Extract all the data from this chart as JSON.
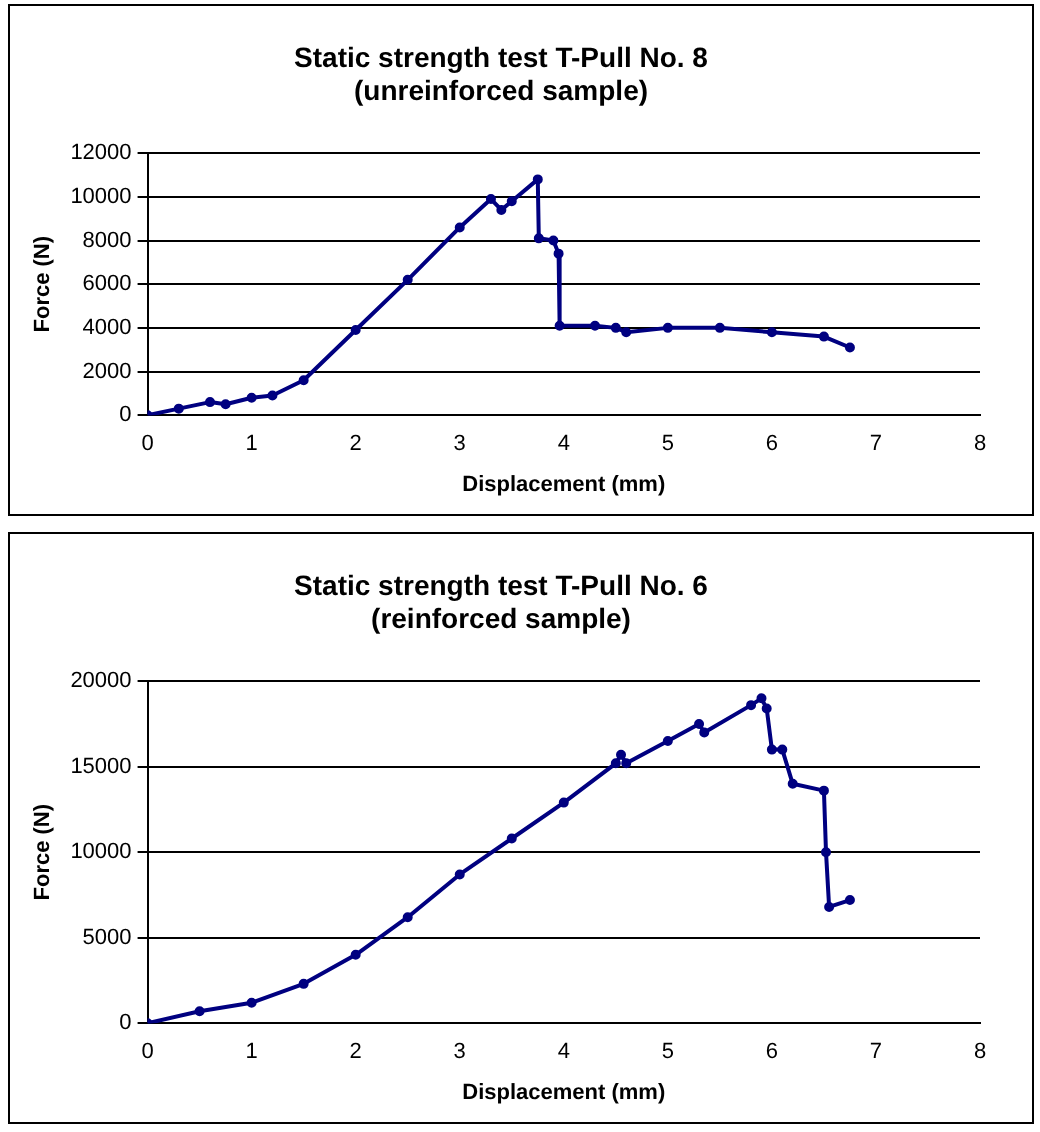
{
  "chart_data": [
    {
      "type": "line",
      "title": "Static strength test T-Pull No. 8\n(unreinforced sample)",
      "xlabel": "Displacement (mm)",
      "ylabel": "Force (N)",
      "xlim": [
        0,
        8
      ],
      "xticks": [
        0,
        1,
        2,
        3,
        4,
        5,
        6,
        7,
        8
      ],
      "ylim": [
        0,
        12000
      ],
      "yticks": [
        0,
        2000,
        4000,
        6000,
        8000,
        10000,
        12000
      ],
      "grid": "y",
      "legend": false,
      "marker": "circle",
      "line_style": "solid",
      "series": [
        {
          "color": "#000080",
          "x": [
            0,
            0.3,
            0.6,
            0.75,
            1,
            1.2,
            1.5,
            2,
            2.5,
            3,
            3.3,
            3.4,
            3.5,
            3.75,
            3.76,
            3.9,
            3.95,
            3.96,
            4.3,
            4.5,
            4.6,
            5,
            5.5,
            6,
            6.5,
            6.75
          ],
          "values": [
            0,
            300,
            600,
            500,
            800,
            900,
            1600,
            3900,
            6200,
            8600,
            9900,
            9400,
            9800,
            10800,
            8100,
            8000,
            7400,
            4100,
            4100,
            4000,
            3800,
            4000,
            4000,
            3800,
            3600,
            3100
          ]
        }
      ]
    },
    {
      "type": "line",
      "title": "Static strength test T-Pull No. 6\n(reinforced sample)",
      "xlabel": "Displacement (mm)",
      "ylabel": "Force (N)",
      "xlim": [
        0,
        8
      ],
      "xticks": [
        0,
        1,
        2,
        3,
        4,
        5,
        6,
        7,
        8
      ],
      "ylim": [
        0,
        20000
      ],
      "yticks": [
        0,
        5000,
        10000,
        15000,
        20000
      ],
      "grid": "y",
      "legend": false,
      "marker": "circle",
      "line_style": "solid",
      "series": [
        {
          "color": "#000080",
          "x": [
            0,
            0.5,
            1,
            1.5,
            2,
            2.5,
            3,
            3.5,
            4,
            4.5,
            4.55,
            4.6,
            5,
            5.3,
            5.35,
            5.8,
            5.9,
            5.95,
            6,
            6.1,
            6.2,
            6.5,
            6.52,
            6.55,
            6.75
          ],
          "values": [
            0,
            700,
            1200,
            2300,
            4000,
            6200,
            8700,
            10800,
            12900,
            15200,
            15700,
            15200,
            16500,
            17500,
            17000,
            18600,
            19000,
            18400,
            16000,
            16000,
            14000,
            13600,
            10000,
            6800,
            7200
          ]
        }
      ]
    }
  ]
}
